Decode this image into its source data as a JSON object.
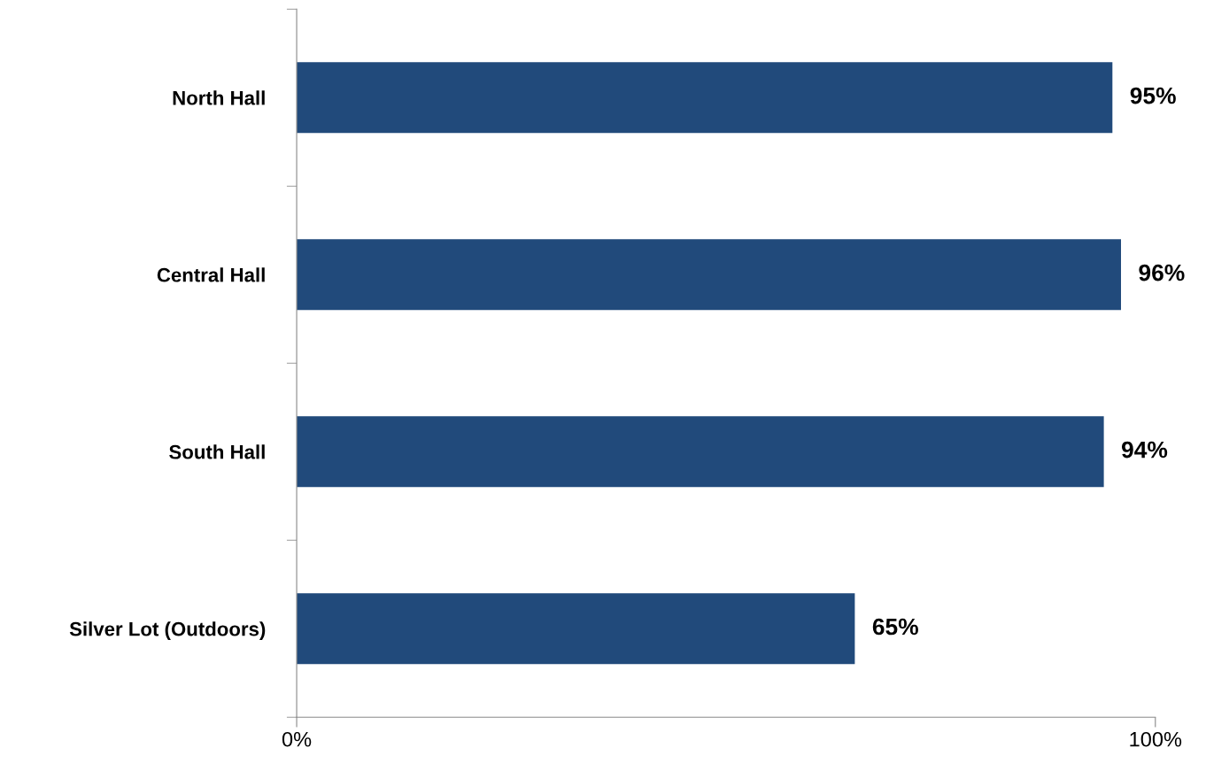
{
  "chart_data": {
    "type": "bar",
    "orientation": "horizontal",
    "categories": [
      "North Hall",
      "Central Hall",
      "South Hall",
      "Silver Lot (Outdoors)"
    ],
    "values": [
      95,
      96,
      94,
      65
    ],
    "color": "#214a7b",
    "value_labels": [
      "95%",
      "96%",
      "94%",
      "65%"
    ],
    "xlim": [
      0,
      100
    ],
    "xticks": [
      {
        "value": 0,
        "label": "0%"
      },
      {
        "value": 100,
        "label": "100%"
      }
    ],
    "grid": false,
    "legend": false
  }
}
